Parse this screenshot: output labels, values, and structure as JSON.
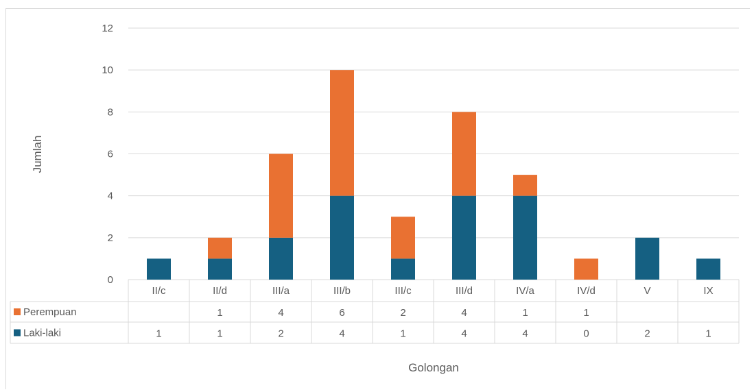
{
  "chart_data": {
    "type": "bar",
    "stacked": true,
    "categories": [
      "II/c",
      "II/d",
      "III/a",
      "III/b",
      "III/c",
      "III/d",
      "IV/a",
      "IV/d",
      "V",
      "IX"
    ],
    "series": [
      {
        "name": "Laki-laki",
        "color": "#156082",
        "values": [
          1,
          1,
          2,
          4,
          1,
          4,
          4,
          0,
          2,
          1
        ],
        "table_labels": [
          "1",
          "1",
          "2",
          "4",
          "1",
          "4",
          "4",
          "0",
          "2",
          "1"
        ]
      },
      {
        "name": "Perempuan",
        "color": "#e97132",
        "values": [
          0,
          1,
          4,
          6,
          2,
          4,
          1,
          1,
          0,
          0
        ],
        "table_labels": [
          "",
          "1",
          "4",
          "6",
          "2",
          "4",
          "1",
          "1",
          "",
          ""
        ]
      }
    ],
    "yticks": [
      "0",
      "2",
      "4",
      "6",
      "8",
      "10",
      "12"
    ],
    "ylim": [
      0,
      12
    ],
    "xlabel": "Golongan",
    "ylabel": "Jumlah",
    "grid": true,
    "legend": "data-table"
  }
}
